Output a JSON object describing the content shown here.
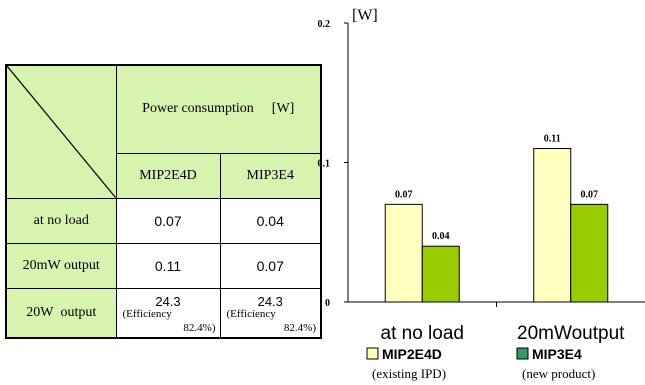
{
  "table": {
    "header": "Power consumption",
    "header_unit": "[W]",
    "columns": [
      "MIP2E4D",
      "MIP3E4"
    ],
    "rows": [
      {
        "label": "at no load",
        "values": [
          "0.07",
          "0.04"
        ]
      },
      {
        "label": "20mW output",
        "values": [
          "0.11",
          "0.07"
        ]
      }
    ],
    "efficiency_row": {
      "label": "20W  output",
      "cells": [
        {
          "value": "24.3",
          "note": "(Efficiency",
          "pct": "82.4%)"
        },
        {
          "value": "24.3",
          "note": "(Efficiency",
          "pct": "82.4%)"
        }
      ]
    }
  },
  "chart_data": {
    "type": "bar",
    "categories": [
      "at no load",
      "20mWoutput"
    ],
    "series": [
      {
        "name": "MIP2E4D",
        "subtitle": "(existing IPD)",
        "values": [
          0.07,
          0.11
        ],
        "color": "#ffffc0"
      },
      {
        "name": "MIP3E4",
        "subtitle": "(new product)",
        "values": [
          0.04,
          0.07
        ],
        "color": "#99cc00"
      }
    ],
    "data_labels": [
      [
        "0.07",
        "0.11"
      ],
      [
        "0.04",
        "0.07"
      ]
    ],
    "ylim": [
      0,
      0.2
    ],
    "yticks": [
      0,
      0.1,
      0.2
    ],
    "ytick_labels": [
      "0",
      "0.1",
      "0.2"
    ],
    "ylabel": "[W]",
    "legend_position": "bottom",
    "legend_marker_colors": [
      "#ffffc0",
      "#339966"
    ],
    "grid": false
  }
}
